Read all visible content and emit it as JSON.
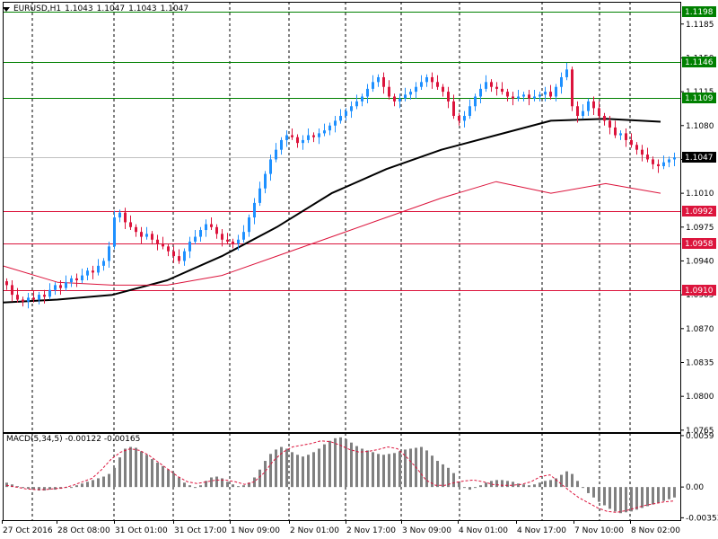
{
  "header": {
    "symbol": "EURUSD,H1",
    "open": "1.1043",
    "high": "1.1047",
    "low": "1.1043",
    "close": "1.1047"
  },
  "macd_panel": {
    "title": "MACD(5,34,5)",
    "main_value": "-0.00122",
    "signal_value": "-0.00165"
  },
  "colors": {
    "bull": "#1E90FF",
    "bear": "#DC143C",
    "ma_fast": "#000000",
    "ma_slow": "#DC143C",
    "support_lines": "#DC143C",
    "resistance_lines": "#008000",
    "macd_hist": "#808080",
    "macd_signal": "#DC143C"
  },
  "chart_data": [
    {
      "type": "candlestick",
      "symbol": "EURUSD",
      "timeframe": "H1",
      "ylim": [
        1.0763,
        1.1208
      ],
      "price_ticks": [
        "1.1185",
        "1.1150",
        "1.1115",
        "1.1080",
        "1.1045",
        "1.1010",
        "1.0975",
        "1.0940",
        "1.0905",
        "1.0870",
        "1.0835",
        "1.0800",
        "1.0765"
      ],
      "time_ticks": [
        "27 Oct 2016",
        "28 Oct 08:00",
        "31 Oct 01:00",
        "31 Oct 17:00",
        "1 Nov 09:00",
        "2 Nov 01:00",
        "2 Nov 17:00",
        "3 Nov 09:00",
        "4 Nov 01:00",
        "4 Nov 17:00",
        "7 Nov 10:00",
        "8 Nov 02:00"
      ],
      "current_price": "1.1047",
      "horizontal_levels": [
        {
          "price": "1.1198",
          "kind": "resistance"
        },
        {
          "price": "1.1146",
          "kind": "resistance"
        },
        {
          "price": "1.1109",
          "kind": "resistance"
        },
        {
          "price": "1.0992",
          "kind": "support"
        },
        {
          "price": "1.0958",
          "kind": "support"
        },
        {
          "price": "1.0910",
          "kind": "support"
        }
      ],
      "close_series": [
        1.0915,
        1.0905,
        1.09,
        1.0898,
        1.0902,
        1.09,
        1.0905,
        1.0903,
        1.091,
        1.0915,
        1.0912,
        1.0918,
        1.0922,
        1.092,
        1.0925,
        1.093,
        1.0928,
        1.0935,
        1.094,
        1.0955,
        1.0985,
        1.099,
        1.098,
        1.0975,
        1.097,
        1.0965,
        1.0968,
        1.0962,
        1.0958,
        1.0955,
        1.095,
        1.0945,
        1.094,
        1.095,
        1.096,
        1.0965,
        1.0972,
        1.0978,
        1.0975,
        1.0968,
        1.0962,
        1.096,
        1.0958,
        1.0962,
        1.097,
        1.0985,
        1.1,
        1.1015,
        1.103,
        1.1045,
        1.1055,
        1.1065,
        1.107,
        1.1068,
        1.1062,
        1.1065,
        1.107,
        1.1068,
        1.1072,
        1.1075,
        1.108,
        1.1085,
        1.109,
        1.1095,
        1.11,
        1.1105,
        1.111,
        1.1118,
        1.1125,
        1.113,
        1.112,
        1.111,
        1.1105,
        1.1108,
        1.1112,
        1.1115,
        1.112,
        1.1125,
        1.113,
        1.1125,
        1.112,
        1.1115,
        1.1105,
        1.109,
        1.1085,
        1.109,
        1.11,
        1.111,
        1.1118,
        1.1125,
        1.112,
        1.1118,
        1.1115,
        1.111,
        1.1108,
        1.111,
        1.1112,
        1.1108,
        1.111,
        1.1112,
        1.1115,
        1.111,
        1.112,
        1.113,
        1.1138,
        1.11,
        1.109,
        1.1095,
        1.1105,
        1.1098,
        1.109,
        1.1085,
        1.1078,
        1.107,
        1.1072,
        1.1065,
        1.106,
        1.1055,
        1.105,
        1.1045,
        1.104,
        1.1038,
        1.1042,
        1.1045,
        1.1047
      ],
      "moving_averages": [
        {
          "name": "MA fast",
          "values": [
            1.0897,
            1.09,
            1.0905,
            1.092,
            1.0945,
            1.0975,
            1.101,
            1.1035,
            1.1055,
            1.107,
            1.1085,
            1.1087,
            1.1084
          ]
        },
        {
          "name": "MA slow",
          "values": [
            1.0935,
            1.0918,
            1.0915,
            1.0915,
            1.0925,
            1.0945,
            1.0965,
            1.0985,
            1.1005,
            1.1022,
            1.101,
            1.102,
            1.101
          ]
        }
      ]
    },
    {
      "type": "bar",
      "indicator": "MACD(5,34,5)",
      "ylim": [
        -0.0038,
        0.0062
      ],
      "value_ticks": [
        "0.0059",
        "0.00",
        "-0.00353"
      ],
      "histogram": [
        0.0005,
        0.0003,
        0.0001,
        -0.0001,
        -0.0002,
        -0.0003,
        -0.0004,
        -0.0004,
        -0.0003,
        -0.0003,
        -0.0002,
        -0.0001,
        0.0,
        0.0002,
        0.0004,
        0.0006,
        0.0008,
        0.001,
        0.0012,
        0.0015,
        0.0022,
        0.0034,
        0.0044,
        0.0046,
        0.0045,
        0.0041,
        0.0037,
        0.0032,
        0.0028,
        0.0024,
        0.002,
        0.0016,
        0.0011,
        0.0005,
        0.0002,
        0.0,
        0.0002,
        0.0007,
        0.0011,
        0.0012,
        0.001,
        0.0006,
        0.0003,
        0.0001,
        0.0002,
        0.0005,
        0.0011,
        0.002,
        0.003,
        0.0038,
        0.0043,
        0.0046,
        0.0044,
        0.004,
        0.0037,
        0.0035,
        0.0037,
        0.004,
        0.0044,
        0.0049,
        0.0053,
        0.0056,
        0.0057,
        0.0055,
        0.0051,
        0.0047,
        0.0044,
        0.0042,
        0.004,
        0.0038,
        0.0037,
        0.0038,
        0.0039,
        0.0041,
        0.0043,
        0.0044,
        0.0045,
        0.0046,
        0.0042,
        0.0036,
        0.003,
        0.0026,
        0.0022,
        0.0016,
        0.0006,
        -0.0001,
        -0.0003,
        -0.0001,
        0.0002,
        0.0005,
        0.0007,
        0.0008,
        0.0008,
        0.0007,
        0.0006,
        0.0004,
        0.0003,
        0.0002,
        0.0003,
        0.0005,
        0.0007,
        0.0008,
        0.001,
        0.0014,
        0.0018,
        0.0015,
        0.0007,
        -0.0001,
        -0.0007,
        -0.0012,
        -0.0017,
        -0.0021,
        -0.0025,
        -0.0028,
        -0.003,
        -0.0029,
        -0.0028,
        -0.0026,
        -0.0024,
        -0.0022,
        -0.002,
        -0.0018,
        -0.0016,
        -0.0014,
        -0.0012
      ],
      "signal": [
        0.0002,
        0.0,
        -0.0002,
        -0.0003,
        -0.0003,
        -0.0002,
        -0.0001,
        0.0002,
        0.0006,
        0.001,
        0.002,
        0.0032,
        0.004,
        0.0044,
        0.0042,
        0.0036,
        0.0028,
        0.002,
        0.0012,
        0.0006,
        0.0004,
        0.0006,
        0.0008,
        0.0008,
        0.0006,
        0.0003,
        0.0006,
        0.0016,
        0.003,
        0.004,
        0.0046,
        0.0048,
        0.005,
        0.0053,
        0.0052,
        0.0048,
        0.0043,
        0.004,
        0.0041,
        0.0043,
        0.0046,
        0.0044,
        0.0034,
        0.0022,
        0.0008,
        0.0002,
        0.0002,
        0.0005,
        0.0007,
        0.0008,
        0.0006,
        0.0003,
        0.0002,
        0.0002,
        0.0003,
        0.0006,
        0.0012,
        0.0014,
        0.0005,
        -0.0004,
        -0.0012,
        -0.0018,
        -0.0024,
        -0.0028,
        -0.0029,
        -0.0027,
        -0.0024,
        -0.0021,
        -0.0019,
        -0.0017,
        -0.0016
      ]
    }
  ]
}
